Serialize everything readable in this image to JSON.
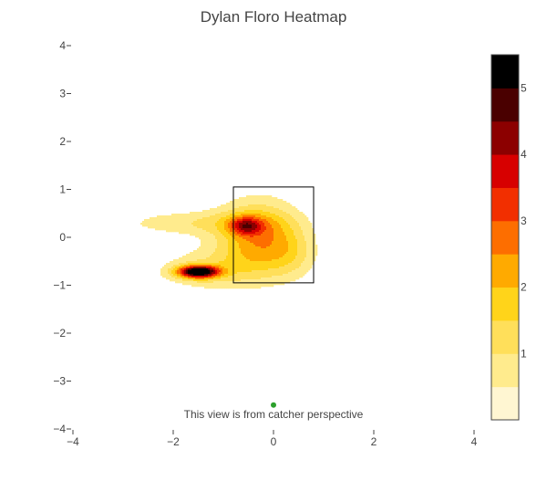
{
  "chart_data": {
    "type": "heatmap",
    "title": "Dylan Floro Heatmap",
    "xlabel": "",
    "ylabel": "",
    "xlim": [
      -4,
      4
    ],
    "ylim": [
      -4,
      4
    ],
    "x_ticks": [
      "−4",
      "−2",
      "0",
      "2",
      "4"
    ],
    "x_tick_values": [
      -4,
      -2,
      0,
      2,
      4
    ],
    "y_ticks": [
      "4",
      "3",
      "2",
      "1",
      "0",
      "−1",
      "−2",
      "−3",
      "−4"
    ],
    "y_tick_values": [
      4,
      3,
      2,
      1,
      0,
      -1,
      -2,
      -3,
      -4
    ],
    "strike_zone": {
      "x": [
        -0.8,
        0.8
      ],
      "y": [
        -0.95,
        1.05
      ]
    },
    "marker": {
      "x": 0,
      "y": -3.5,
      "color": "#2ca02c"
    },
    "annotation": "This view is from catcher perspective",
    "colorscale": {
      "range": [
        0,
        5.5
      ],
      "ticks": [
        "1",
        "2",
        "3",
        "4",
        "5"
      ],
      "tick_values": [
        1,
        2,
        3,
        4,
        5
      ],
      "levels": [
        0.5,
        1.0,
        1.5,
        2.0,
        2.5,
        3.0,
        3.5,
        4.0,
        4.5,
        5.0
      ],
      "colors": [
        "#ffffff",
        "#fff6d2",
        "#ffeb8d",
        "#ffdf5a",
        "#ffd41a",
        "#ffaa00",
        "#fd6e00",
        "#f22f00",
        "#d70000",
        "#8c0000",
        "#4a0000",
        "#000000"
      ]
    },
    "density_components": [
      {
        "x": -1.5,
        "y": -0.72,
        "sx": 0.28,
        "sy": 0.09,
        "weight": 5.6
      },
      {
        "x": -1.2,
        "y": -0.68,
        "sx": 0.75,
        "sy": 0.3,
        "weight": 1.0
      },
      {
        "x": -0.55,
        "y": 0.24,
        "sx": 0.22,
        "sy": 0.13,
        "weight": 2.2
      },
      {
        "x": -0.3,
        "y": 0.0,
        "sx": 0.55,
        "sy": 0.5,
        "weight": 2.4
      },
      {
        "x": -1.5,
        "y": 0.3,
        "sx": 1.05,
        "sy": 0.18,
        "weight": 0.9
      },
      {
        "x": 0.35,
        "y": -0.35,
        "sx": 0.35,
        "sy": 0.35,
        "weight": 0.8
      }
    ]
  }
}
